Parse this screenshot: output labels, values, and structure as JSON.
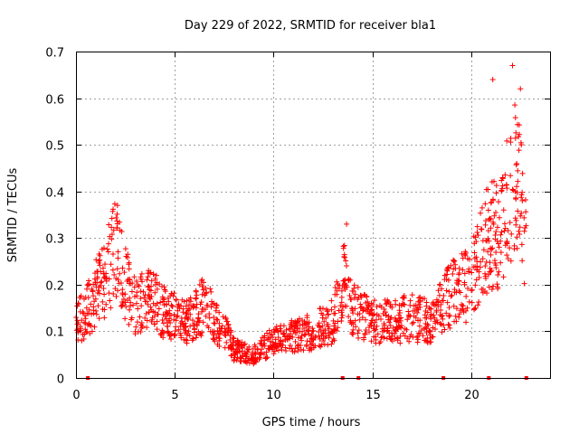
{
  "chart_data": {
    "type": "scatter",
    "title": "Day 229 of 2022, SRMTID for receiver bla1",
    "xlabel": "GPS time / hours",
    "ylabel": "SRMTID / TECUs",
    "xlim": [
      0,
      24
    ],
    "ylim": [
      0,
      0.7
    ],
    "xticks": [
      0,
      5,
      10,
      15,
      20
    ],
    "yticks": [
      0,
      0.1,
      0.2,
      0.3,
      0.4,
      0.5,
      0.6,
      0.7
    ],
    "xtick_labels": [
      "0",
      "5",
      "10",
      "15",
      "20"
    ],
    "ytick_labels": [
      "0",
      "0.1",
      "0.2",
      "0.3",
      "0.4",
      "0.5",
      "0.6",
      "0.7"
    ],
    "grid": true,
    "marker": "+",
    "color": "#ff0000",
    "series_trend": [
      {
        "x": 0.0,
        "y": 0.12
      },
      {
        "x": 0.5,
        "y": 0.14
      },
      {
        "x": 1.0,
        "y": 0.18
      },
      {
        "x": 1.5,
        "y": 0.22
      },
      {
        "x": 2.0,
        "y": 0.28
      },
      {
        "x": 2.4,
        "y": 0.22
      },
      {
        "x": 3.0,
        "y": 0.15
      },
      {
        "x": 3.5,
        "y": 0.17
      },
      {
        "x": 4.0,
        "y": 0.16
      },
      {
        "x": 4.5,
        "y": 0.14
      },
      {
        "x": 5.0,
        "y": 0.13
      },
      {
        "x": 5.5,
        "y": 0.12
      },
      {
        "x": 6.0,
        "y": 0.13
      },
      {
        "x": 6.5,
        "y": 0.16
      },
      {
        "x": 7.0,
        "y": 0.12
      },
      {
        "x": 7.5,
        "y": 0.1
      },
      {
        "x": 8.0,
        "y": 0.06
      },
      {
        "x": 9.0,
        "y": 0.05
      },
      {
        "x": 10.0,
        "y": 0.08
      },
      {
        "x": 11.0,
        "y": 0.09
      },
      {
        "x": 12.0,
        "y": 0.1
      },
      {
        "x": 13.0,
        "y": 0.12
      },
      {
        "x": 13.6,
        "y": 0.22
      },
      {
        "x": 14.0,
        "y": 0.15
      },
      {
        "x": 15.0,
        "y": 0.12
      },
      {
        "x": 16.0,
        "y": 0.12
      },
      {
        "x": 17.0,
        "y": 0.13
      },
      {
        "x": 18.0,
        "y": 0.12
      },
      {
        "x": 19.0,
        "y": 0.18
      },
      {
        "x": 20.0,
        "y": 0.2
      },
      {
        "x": 20.5,
        "y": 0.28
      },
      {
        "x": 21.0,
        "y": 0.3
      },
      {
        "x": 21.5,
        "y": 0.32
      },
      {
        "x": 22.0,
        "y": 0.4
      },
      {
        "x": 22.5,
        "y": 0.45
      },
      {
        "x": 22.8,
        "y": 0.25
      }
    ],
    "peaks": [
      {
        "x": 2.1,
        "y": 0.37
      },
      {
        "x": 13.7,
        "y": 0.33
      },
      {
        "x": 21.1,
        "y": 0.64
      },
      {
        "x": 22.1,
        "y": 0.67
      },
      {
        "x": 22.5,
        "y": 0.62
      }
    ],
    "zero_markers": [
      0.6,
      13.5,
      14.3,
      18.6,
      20.9,
      22.8
    ]
  }
}
